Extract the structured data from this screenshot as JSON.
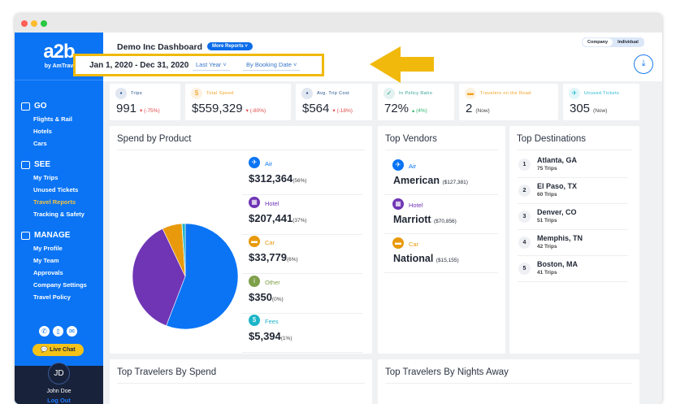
{
  "window": {
    "controls": [
      "#ff5f57",
      "#febc2e",
      "#28c840"
    ]
  },
  "sidebar": {
    "logo": "a2b",
    "logo_sub": "by AmTrav",
    "sections": [
      {
        "label": "GO",
        "icon": "briefcase-icon",
        "items": [
          "Flights & Rail",
          "Hotels",
          "Cars"
        ]
      },
      {
        "label": "SEE",
        "icon": "gauge-icon",
        "items": [
          "My Trips",
          "Unused Tickets",
          "Travel Reports",
          "Tracking & Safety"
        ]
      },
      {
        "label": "MANAGE",
        "icon": "gear-icon",
        "items": [
          "My Profile",
          "My Team",
          "Approvals",
          "Company Settings",
          "Travel Policy"
        ]
      }
    ],
    "active_item": "Travel Reports",
    "live_chat": "Live Chat",
    "user": {
      "initials": "JD",
      "name": "John Doe",
      "logout": "Log Out"
    }
  },
  "header": {
    "title": "Demo Inc Dashboard",
    "more_reports": "More Reports",
    "date_range": "Jan 1, 2020 - Dec 31, 2020",
    "period": "Last Year",
    "date_basis": "By Booking Date",
    "toggle": [
      "Company",
      "Individual"
    ],
    "toggle_selected": "Company"
  },
  "stats": [
    {
      "label": "Trips",
      "value": "991",
      "change": "(-75%)",
      "trend": "down",
      "icon": "briefcase-icon",
      "color": "#1f4e8c"
    },
    {
      "label": "Total Spend",
      "value": "$559,329",
      "change": "(-80%)",
      "trend": "down",
      "icon": "dollar-icon",
      "color": "#f0a020"
    },
    {
      "label": "Avg. Trip Cost",
      "value": "$564",
      "change": "(-18%)",
      "trend": "down",
      "icon": "briefcase-icon",
      "color": "#1f4e8c"
    },
    {
      "label": "In Policy Ratio",
      "value": "72%",
      "change": "(4%)",
      "trend": "up",
      "icon": "check-icon",
      "color": "#2a9d8f"
    },
    {
      "label": "Travelers on the Road",
      "value": "2",
      "change": "(Now)",
      "icon": "car-icon",
      "color": "#f0a020"
    },
    {
      "label": "Unused Tickets",
      "value": "305",
      "change": "(Now)",
      "icon": "plane-icon",
      "color": "#22b8cf"
    }
  ],
  "spend_by_product": {
    "title": "Spend by Product",
    "chart_data": {
      "type": "pie",
      "slices": [
        {
          "name": "Air",
          "value": 312364,
          "amount": "$312,364",
          "pct": "(56%)",
          "color": "#0a74f5",
          "icon": "plane-icon"
        },
        {
          "name": "Hotel",
          "value": 207441,
          "amount": "$207,441",
          "pct": "(37%)",
          "color": "#6f35b5",
          "icon": "building-icon"
        },
        {
          "name": "Car",
          "value": 33779,
          "amount": "$33,779",
          "pct": "(6%)",
          "color": "#e89a0c",
          "icon": "car-icon"
        },
        {
          "name": "Other",
          "value": 350,
          "amount": "$350",
          "pct": "(0%)",
          "color": "#7fa04a",
          "icon": "info-icon"
        },
        {
          "name": "Fees",
          "value": 5394,
          "amount": "$5,394",
          "pct": "(1%)",
          "color": "#1cb5c8",
          "icon": "dollar-icon"
        }
      ]
    }
  },
  "top_vendors": {
    "title": "Top Vendors",
    "items": [
      {
        "type": "Air",
        "name": "American",
        "amount": "($127,381)",
        "color": "#0a74f5",
        "icon": "plane-icon"
      },
      {
        "type": "Hotel",
        "name": "Marriott",
        "amount": "($70,856)",
        "color": "#6f35b5",
        "icon": "building-icon"
      },
      {
        "type": "Car",
        "name": "National",
        "amount": "($15,155)",
        "color": "#e89a0c",
        "icon": "car-icon"
      }
    ]
  },
  "top_destinations": {
    "title": "Top Destinations",
    "items": [
      {
        "rank": "1",
        "city": "Atlanta, GA",
        "trips": "75 Trips"
      },
      {
        "rank": "2",
        "city": "El Paso, TX",
        "trips": "60 Trips"
      },
      {
        "rank": "3",
        "city": "Denver, CO",
        "trips": "51 Trips"
      },
      {
        "rank": "4",
        "city": "Memphis, TN",
        "trips": "42 Trips"
      },
      {
        "rank": "5",
        "city": "Boston, MA",
        "trips": "41 Trips"
      }
    ]
  },
  "bottom": {
    "spend_title": "Top Travelers By Spend",
    "nights_title": "Top Travelers By Nights Away"
  }
}
